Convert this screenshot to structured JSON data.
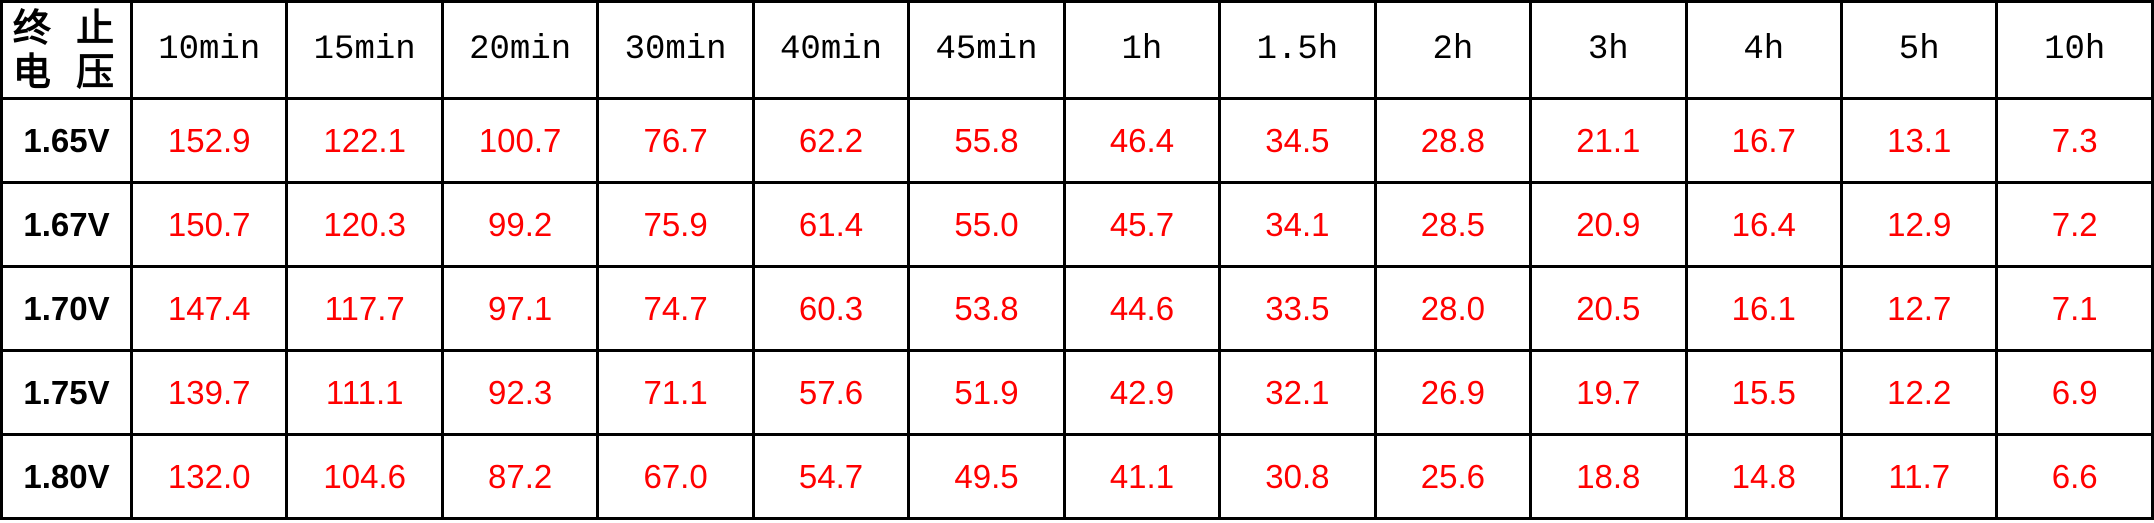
{
  "table": {
    "corner_header_line1": "终 止",
    "corner_header_line2": "电 压",
    "columns": [
      "10min",
      "15min",
      "20min",
      "30min",
      "40min",
      "45min",
      "1h",
      "1.5h",
      "2h",
      "3h",
      "4h",
      "5h",
      "10h"
    ],
    "rows": [
      {
        "label": "1.65V",
        "values": [
          "152.9",
          "122.1",
          "100.7",
          "76.7",
          "62.2",
          "55.8",
          "46.4",
          "34.5",
          "28.8",
          "21.1",
          "16.7",
          "13.1",
          "7.3"
        ]
      },
      {
        "label": "1.67V",
        "values": [
          "150.7",
          "120.3",
          "99.2",
          "75.9",
          "61.4",
          "55.0",
          "45.7",
          "34.1",
          "28.5",
          "20.9",
          "16.4",
          "12.9",
          "7.2"
        ]
      },
      {
        "label": "1.70V",
        "values": [
          "147.4",
          "117.7",
          "97.1",
          "74.7",
          "60.3",
          "53.8",
          "44.6",
          "33.5",
          "28.0",
          "20.5",
          "16.1",
          "12.7",
          "7.1"
        ]
      },
      {
        "label": "1.75V",
        "values": [
          "139.7",
          "111.1",
          "92.3",
          "71.1",
          "57.6",
          "51.9",
          "42.9",
          "32.1",
          "26.9",
          "19.7",
          "15.5",
          "12.2",
          "6.9"
        ]
      },
      {
        "label": "1.80V",
        "values": [
          "132.0",
          "104.6",
          "87.2",
          "67.0",
          "54.7",
          "49.5",
          "41.1",
          "30.8",
          "25.6",
          "18.8",
          "14.8",
          "11.7",
          "6.6"
        ]
      }
    ]
  },
  "colors": {
    "value_text": "#ff0000",
    "label_text": "#000000",
    "border": "#000000",
    "background": "#ffffff"
  },
  "chart_data": {
    "type": "table",
    "title": "",
    "corner_header": "终止电压",
    "categories": [
      "10min",
      "15min",
      "20min",
      "30min",
      "40min",
      "45min",
      "1h",
      "1.5h",
      "2h",
      "3h",
      "4h",
      "5h",
      "10h"
    ],
    "series": [
      {
        "name": "1.65V",
        "values": [
          152.9,
          122.1,
          100.7,
          76.7,
          62.2,
          55.8,
          46.4,
          34.5,
          28.8,
          21.1,
          16.7,
          13.1,
          7.3
        ]
      },
      {
        "name": "1.67V",
        "values": [
          150.7,
          120.3,
          99.2,
          75.9,
          61.4,
          55.0,
          45.7,
          34.1,
          28.5,
          20.9,
          16.4,
          12.9,
          7.2
        ]
      },
      {
        "name": "1.70V",
        "values": [
          147.4,
          117.7,
          97.1,
          74.7,
          60.3,
          53.8,
          44.6,
          33.5,
          28.0,
          20.5,
          16.1,
          12.7,
          7.1
        ]
      },
      {
        "name": "1.75V",
        "values": [
          139.7,
          111.1,
          92.3,
          71.1,
          57.6,
          51.9,
          42.9,
          32.1,
          26.9,
          19.7,
          15.5,
          12.2,
          6.9
        ]
      },
      {
        "name": "1.80V",
        "values": [
          132.0,
          104.6,
          87.2,
          67.0,
          54.7,
          49.5,
          41.1,
          30.8,
          25.6,
          18.8,
          14.8,
          11.7,
          6.6
        ]
      }
    ]
  }
}
